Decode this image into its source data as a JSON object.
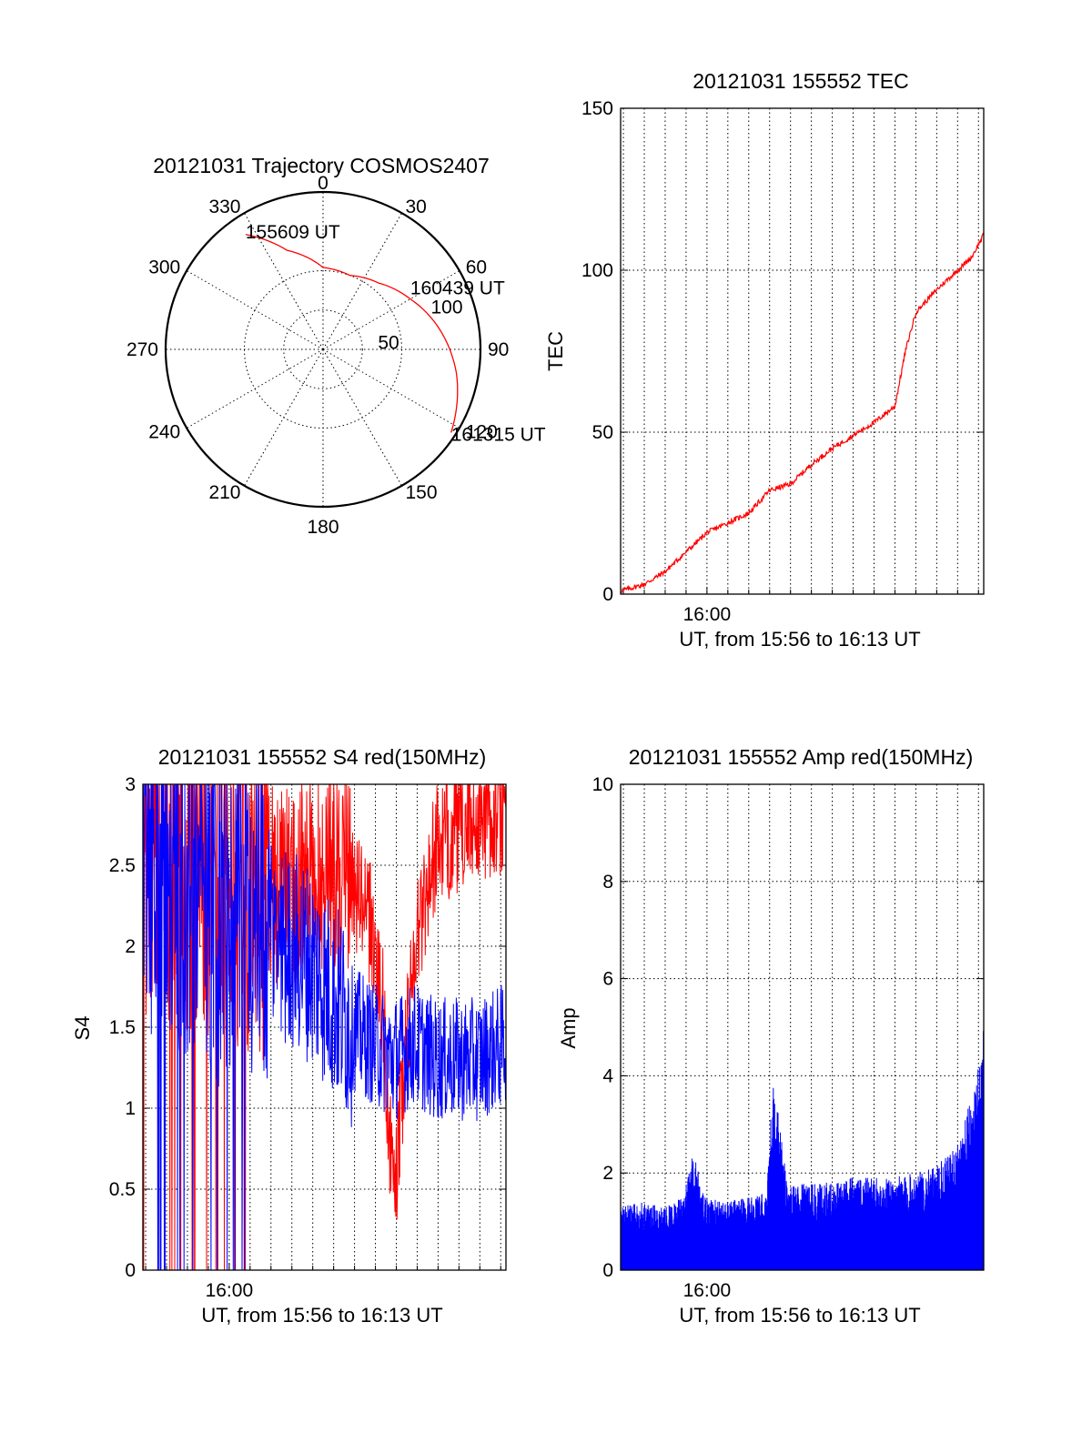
{
  "chart_data": [
    {
      "type": "polar",
      "title": "20121031 Trajectory COSMOS2407",
      "azimuth_labels": [
        "0",
        "30",
        "60",
        "90",
        "120",
        "150",
        "180",
        "210",
        "240",
        "270",
        "300",
        "330"
      ],
      "ring_labels": [
        "50",
        "100"
      ],
      "r_max": 100,
      "color": "#ff0000",
      "trajectory": [
        {
          "az": 326,
          "r": 88
        },
        {
          "az": 340,
          "r": 67
        },
        {
          "az": 0,
          "r": 52
        },
        {
          "az": 20,
          "r": 50
        },
        {
          "az": 40,
          "r": 55
        },
        {
          "az": 60,
          "r": 64
        },
        {
          "az": 80,
          "r": 75
        },
        {
          "az": 100,
          "r": 86
        },
        {
          "az": 123,
          "r": 97
        }
      ],
      "annotations": [
        {
          "text": "155609 UT",
          "az": 326,
          "r": 88
        },
        {
          "text": "160439 UT",
          "az": 60,
          "r": 64
        },
        {
          "text": "161315 UT",
          "az": 123,
          "r": 97
        }
      ]
    },
    {
      "type": "line",
      "title": "20121031 155552 TEC",
      "xlabel": "UT, from 15:56 to 16:13 UT",
      "ylabel": "TEC",
      "x_tick_labels": [
        "16:00"
      ],
      "xlim_minutes": [
        15.87,
        13.3
      ],
      "x_range": [
        "15:55:52",
        "16:13:15"
      ],
      "ylim": [
        0,
        150
      ],
      "yticks": [
        "0",
        "50",
        "100",
        "150"
      ],
      "grid": true,
      "color": "#ff0000",
      "series": [
        {
          "x": [
            "15:55:52",
            "15:57:00",
            "15:58:00",
            "15:59:00",
            "16:00:00",
            "16:01:00",
            "16:02:00",
            "16:03:00",
            "16:04:00",
            "16:05:00",
            "16:06:00",
            "16:07:00",
            "16:08:00",
            "16:09:00",
            "16:09:30",
            "16:10:00",
            "16:11:00",
            "16:12:00",
            "16:12:40",
            "16:13:15"
          ],
          "values": [
            1,
            3,
            7,
            13,
            19,
            22,
            25,
            32,
            34,
            40,
            45,
            49,
            53,
            58,
            75,
            87,
            94,
            100,
            104,
            111
          ]
        }
      ]
    },
    {
      "type": "line",
      "title": "20121031 155552 S4 red(150MHz)",
      "xlabel": "UT, from 15:56 to 16:13 UT",
      "ylabel": "S4",
      "x_tick_labels": [
        "16:00"
      ],
      "x_range": [
        "15:55:52",
        "16:13:15"
      ],
      "ylim": [
        0,
        3
      ],
      "yticks": [
        "0",
        "0.5",
        "1",
        "1.5",
        "2",
        "2.5",
        "3"
      ],
      "grid": true,
      "series": [
        {
          "color": "#ff0000",
          "x_minutes": [
            0,
            2,
            4,
            6,
            8,
            9,
            10,
            11,
            11.5,
            12,
            13,
            14,
            15,
            16,
            17.38
          ],
          "values": [
            2.7,
            2.6,
            2.5,
            2.4,
            2.4,
            2.5,
            2.4,
            2.1,
            1.6,
            0.4,
            2.0,
            2.6,
            2.7,
            2.8,
            2.8
          ]
        },
        {
          "color": "#0000ff",
          "x_minutes": [
            0,
            2,
            4,
            6,
            8,
            9,
            10,
            11,
            12,
            13,
            14,
            15,
            16,
            17.38
          ],
          "values": [
            2.6,
            2.4,
            2.2,
            2.1,
            1.9,
            1.7,
            1.5,
            1.4,
            1.3,
            1.4,
            1.3,
            1.3,
            1.3,
            1.4
          ]
        }
      ]
    },
    {
      "type": "line",
      "title": "20121031 155552 Amp red(150MHz)",
      "xlabel": "UT, from 15:56 to 16:13 UT",
      "ylabel": "Amp",
      "x_tick_labels": [
        "16:00"
      ],
      "x_range": [
        "15:55:52",
        "16:13:15"
      ],
      "ylim": [
        0,
        10
      ],
      "yticks": [
        "0",
        "2",
        "4",
        "6",
        "8",
        "10"
      ],
      "grid": true,
      "color": "#0000ff",
      "series": [
        {
          "x_minutes": [
            0,
            1,
            2,
            3,
            3.5,
            4,
            5,
            6,
            7,
            7.3,
            8,
            9,
            10,
            11,
            12,
            13,
            14,
            15,
            16,
            17,
            17.38
          ],
          "values": [
            1.3,
            1.4,
            1.3,
            1.5,
            2.5,
            1.5,
            1.4,
            1.5,
            1.6,
            4.1,
            1.7,
            1.8,
            1.8,
            1.9,
            1.9,
            1.9,
            2.0,
            2.1,
            2.5,
            3.8,
            5.2
          ]
        }
      ]
    }
  ]
}
